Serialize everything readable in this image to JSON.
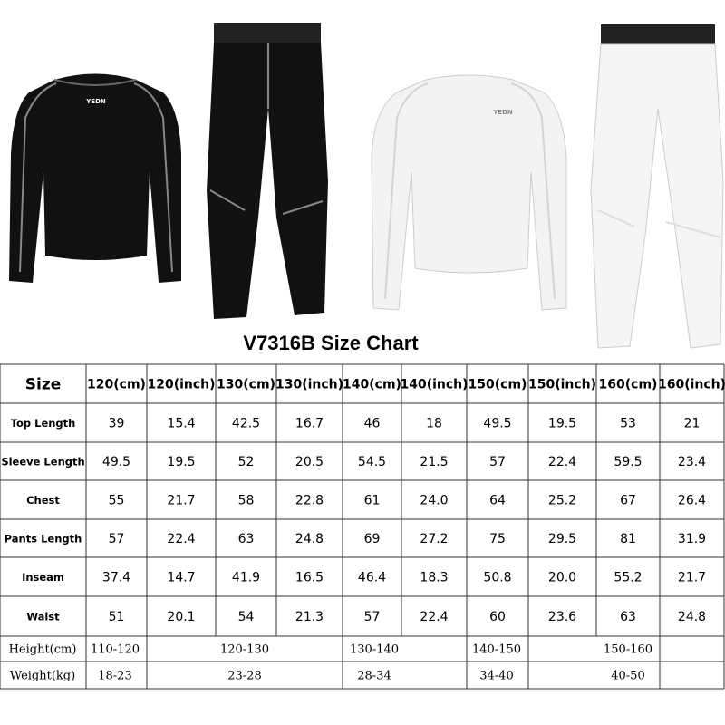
{
  "brand": "YEDN",
  "title": "V7316B Size Chart",
  "header": [
    "Size",
    "120(cm)",
    "120(inch)",
    "130(cm)",
    "130(inch)",
    "140(cm)",
    "140(inch)",
    "150(cm)",
    "150(inch)",
    "160(cm)",
    "160(inch)"
  ],
  "rows": [
    [
      "Top Length",
      "39",
      "15.4",
      "42.5",
      "16.7",
      "46",
      "18",
      "49.5",
      "19.5",
      "53",
      "21"
    ],
    [
      "Sleeve Length",
      "49.5",
      "19.5",
      "52",
      "20.5",
      "54.5",
      "21.5",
      "57",
      "22.4",
      "59.5",
      "23.4"
    ],
    [
      "Chest",
      "55",
      "21.7",
      "58",
      "22.8",
      "61",
      "24.0",
      "64",
      "25.2",
      "67",
      "26.4"
    ],
    [
      "Pants Length",
      "57",
      "22.4",
      "63",
      "24.8",
      "69",
      "27.2",
      "75",
      "29.5",
      "81",
      "31.9"
    ],
    [
      "Inseam",
      "37.4",
      "14.7",
      "41.9",
      "16.5",
      "46.4",
      "18.3",
      "50.8",
      "20.0",
      "55.2",
      "21.7"
    ],
    [
      "Waist",
      "51",
      "20.1",
      "54",
      "21.3",
      "57",
      "22.4",
      "60",
      "23.6",
      "63",
      "24.8"
    ]
  ],
  "footer_rows": [
    [
      "Height(cm)",
      "110-120",
      "120-130",
      "130-140",
      "140-150",
      "150-160"
    ],
    [
      "Weight(kg)",
      "18-23",
      "23-28",
      "28-34",
      "34-40",
      "40-50"
    ]
  ]
}
